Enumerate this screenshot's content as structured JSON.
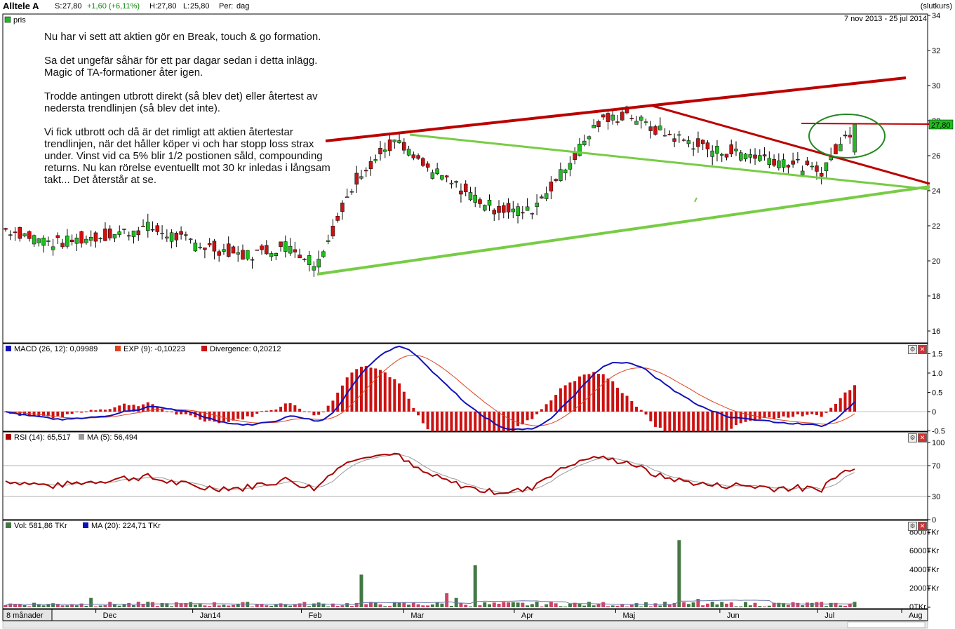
{
  "header": {
    "ticker": "Alltele A",
    "s_label": "S:",
    "s_value": "27,80",
    "change": "+1,60 (+6,11%)",
    "h_label": "H:",
    "h_value": "27,80",
    "l_label": "L:",
    "l_value": "25,80",
    "per_label": "Per:",
    "per_value": "dag",
    "price_mode": "(slutkurs)"
  },
  "price_panel": {
    "legend_label": "pris",
    "date_range": "7 nov 2013 - 25 jul 2014",
    "current_price_tag": "27,80",
    "y_ticks": [
      "34",
      "32",
      "30",
      "28",
      "26",
      "24",
      "22",
      "20",
      "18",
      "16"
    ]
  },
  "annotation": {
    "p1": "Nu har vi sett att aktien gör en Break, touch & go formation.",
    "p2": "Sa det ungefär såhär för ett par dagar sedan i detta inlägg. Magic of TA-formationer åter igen.",
    "p3": "Trodde antingen utbrott direkt (så blev det) eller återtest av nedersta trendlinjen (så blev det inte).",
    "p4": "Vi fick utbrott och då är det rimligt att aktien återtestar trendlinjen, när det håller köper vi och har stopp loss strax under. Vinst vid ca 5% blir 1/2 postionen såld, compounding returns. Nu kan rörelse eventuellt mot 30 kr inledas i långsam takt... Det återstår at se."
  },
  "macd_panel": {
    "legend1": "MACD (26, 12): 0,09989",
    "legend2": "EXP (9): -0,10223",
    "legend3": "Divergence: 0,20212",
    "y_ticks": [
      "1.5",
      "1.0",
      "0.5",
      "0",
      "-0.5"
    ]
  },
  "rsi_panel": {
    "legend1": "RSI (14): 65,517",
    "legend2": "MA (5): 56,494",
    "y_ticks": [
      "100",
      "70",
      "30",
      "0"
    ]
  },
  "volume_panel": {
    "legend1": "Vol: 581,86 TKr",
    "legend2": "MA (20): 224,71 TKr",
    "y_ticks": [
      "8000TKr",
      "6000TKr",
      "4000TKr",
      "2000TKr",
      "0TKr"
    ]
  },
  "x_axis": {
    "period_selector": "8 månader",
    "months": [
      "Dec",
      "Jan14",
      "Feb",
      "Mar",
      "Apr",
      "Maj",
      "Jun",
      "Jul",
      "Aug"
    ]
  },
  "colors": {
    "up_candle": "#22bb22",
    "down_candle": "#cc1111",
    "resistance_line": "#bb0000",
    "support_line": "#77cc44",
    "macd_line": "#1111bb",
    "signal_line": "#dd4422",
    "rsi_line": "#aa0000",
    "rsi_ma": "#999999",
    "volume_up": "#447744",
    "volume_down": "#cc4466"
  },
  "chart_data": {
    "type": "candlestick",
    "title": "Alltele A",
    "date_range": "7 nov 2013 - 25 jul 2014",
    "ylim": [
      15,
      34
    ],
    "close_series_anchor_points": [
      {
        "x": "Nov 2013",
        "y": 21.8
      },
      {
        "x": "Dec",
        "y": 21.0
      },
      {
        "x": "Jan14",
        "y": 21.5
      },
      {
        "x": "Feb",
        "y": 20.4
      },
      {
        "x": "late Feb",
        "y": 19.8
      },
      {
        "x": "Mar",
        "y": 25.0
      },
      {
        "x": "mid Mar",
        "y": 27.0
      },
      {
        "x": "Apr",
        "y": 24.5
      },
      {
        "x": "late Apr",
        "y": 22.8
      },
      {
        "x": "Maj",
        "y": 25.2
      },
      {
        "x": "mid Maj",
        "y": 28.3
      },
      {
        "x": "Jun",
        "y": 27.0
      },
      {
        "x": "Jul",
        "y": 26.1
      },
      {
        "x": "mid Jul",
        "y": 25.4
      },
      {
        "x": "25 Jul",
        "y": 27.8
      }
    ],
    "last": {
      "close": 27.8,
      "high": 27.8,
      "low": 25.8,
      "change": 1.6,
      "change_pct": 6.11
    },
    "indicators": {
      "macd": {
        "macd": 0.09989,
        "exp9": -0.10223,
        "divergence": 0.20212
      },
      "rsi": {
        "rsi14": 65.517,
        "ma5": 56.494,
        "levels": [
          70,
          30
        ]
      },
      "volume": {
        "last": "581,86 TKr",
        "ma20": "224,71 TKr"
      }
    }
  }
}
